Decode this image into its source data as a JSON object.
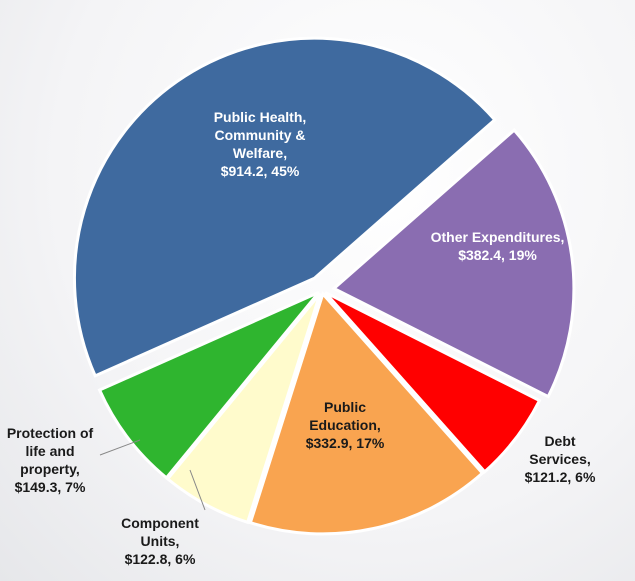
{
  "chart_data": {
    "type": "pie",
    "categories": [
      "Public Health, Community & Welfare,",
      "Other Expenditures,",
      "Debt Services,",
      "Public Education,",
      "Component Units,",
      "Protection of life and property,"
    ],
    "values": [
      914.2,
      382.4,
      121.2,
      332.9,
      122.8,
      149.3
    ],
    "value_labels": [
      "$914.2, 45%",
      "$382.4, 19%",
      "$121.2, 6%",
      "$332.9, 17%",
      "$122.8, 6%",
      "$149.3, 7%"
    ],
    "colors": [
      "#3f6a9f",
      "#8a6db1",
      "#ff0000",
      "#f9a450",
      "#fffbcc",
      "#2fb52f"
    ]
  }
}
